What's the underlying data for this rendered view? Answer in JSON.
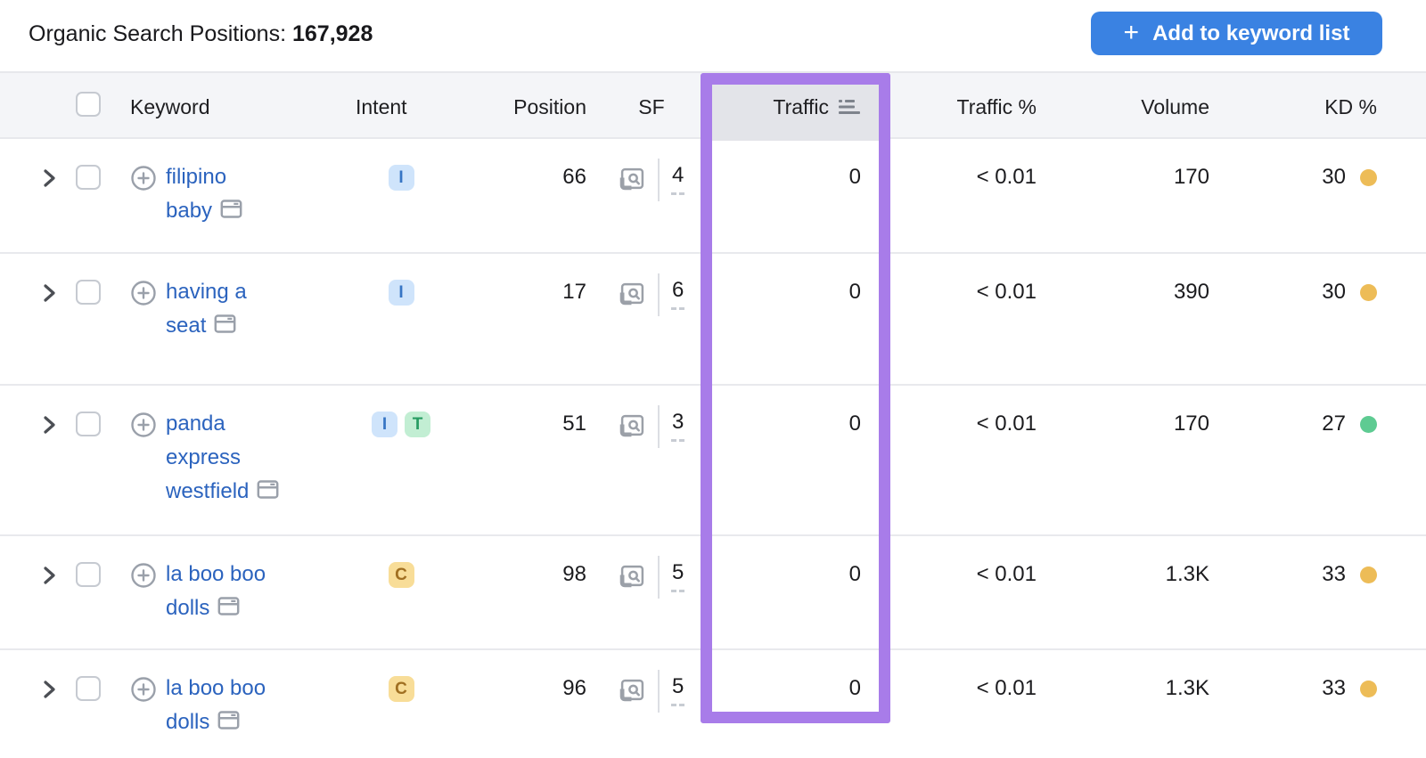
{
  "topbar": {
    "title_label": "Organic Search Positions:",
    "title_count": "167,928",
    "add_button": {
      "plus": "+",
      "label": "Add to keyword list"
    }
  },
  "table": {
    "columns": {
      "keyword": "Keyword",
      "intent": "Intent",
      "position": "Position",
      "sf": "SF",
      "traffic": "Traffic",
      "traffic_pct": "Traffic %",
      "volume": "Volume",
      "kd": "KD %"
    },
    "rows": [
      {
        "keyword": "filipino baby",
        "intents": [
          {
            "label": "I",
            "type": "informational"
          }
        ],
        "position": "66",
        "sf": "4",
        "traffic": "0",
        "traffic_pct": "< 0.01",
        "volume": "170",
        "kd": "30",
        "kd_dot": "amber"
      },
      {
        "keyword": "having a seat",
        "intents": [
          {
            "label": "I",
            "type": "informational"
          }
        ],
        "position": "17",
        "sf": "6",
        "traffic": "0",
        "traffic_pct": "< 0.01",
        "volume": "390",
        "kd": "30",
        "kd_dot": "amber"
      },
      {
        "keyword": "panda express westfield",
        "intents": [
          {
            "label": "I",
            "type": "informational"
          },
          {
            "label": "T",
            "type": "transactional"
          }
        ],
        "position": "51",
        "sf": "3",
        "traffic": "0",
        "traffic_pct": "< 0.01",
        "volume": "170",
        "kd": "27",
        "kd_dot": "green"
      },
      {
        "keyword": "la boo boo dolls",
        "intents": [
          {
            "label": "C",
            "type": "commercial"
          }
        ],
        "position": "98",
        "sf": "5",
        "traffic": "0",
        "traffic_pct": "< 0.01",
        "volume": "1.3K",
        "kd": "33",
        "kd_dot": "amber"
      },
      {
        "keyword": "la boo boo dolls",
        "intents": [
          {
            "label": "C",
            "type": "commercial"
          }
        ],
        "position": "96",
        "sf": "5",
        "traffic": "0",
        "traffic_pct": "< 0.01",
        "volume": "1.3K",
        "kd": "33",
        "kd_dot": "amber"
      }
    ]
  },
  "colors": {
    "button_blue": "#3a82e2",
    "highlight_purple": "#a87ce9",
    "link_blue": "#2b63be",
    "kd_dots": {
      "amber": "#edbc57",
      "green": "#5ecb92"
    },
    "intent_badges": {
      "informational": {
        "bg": "#cfe4fb",
        "fg": "#3675c4"
      },
      "transactional": {
        "bg": "#c2eed3",
        "fg": "#279c62"
      },
      "commercial": {
        "bg": "#f8dd98",
        "fg": "#a06f21"
      }
    }
  }
}
